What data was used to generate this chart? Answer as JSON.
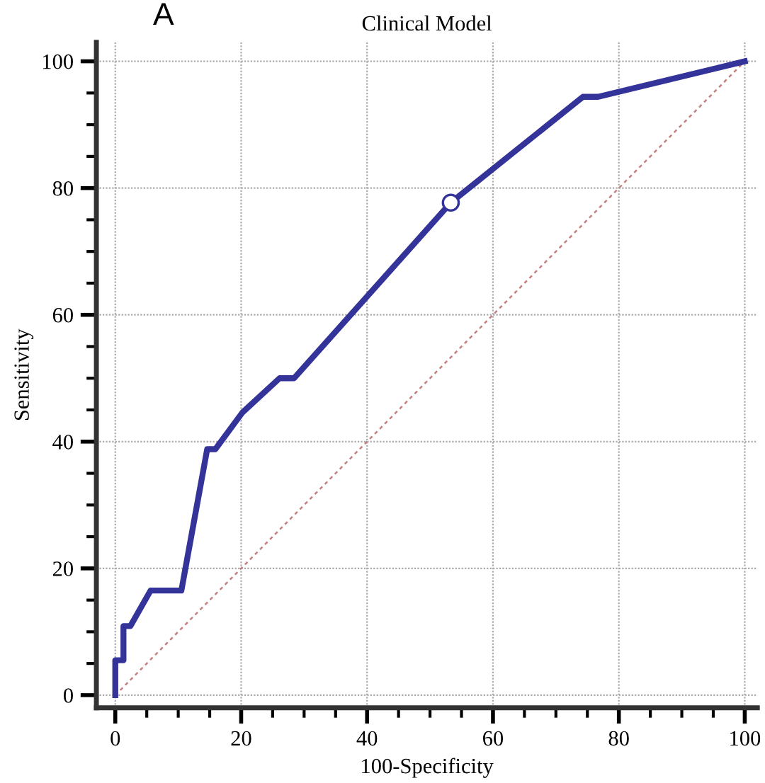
{
  "chart_data": {
    "type": "line",
    "title": "Clinical Model",
    "xlabel": "100-Specificity",
    "ylabel": "Sensitivity",
    "annotations": [
      "A"
    ],
    "series": [
      {
        "color": "#333399",
        "x": [
          0,
          0,
          1.3,
          1.3,
          2.4,
          5.6,
          10.5,
          14.6,
          15.9,
          20.2,
          26.1,
          28.4,
          53.3,
          74.3,
          76.7,
          100
        ],
        "values": [
          0,
          5.5,
          5.5,
          10.9,
          10.9,
          16.5,
          16.5,
          38.8,
          38.8,
          44.6,
          50,
          50,
          77.7,
          94.4,
          94.4,
          100
        ]
      },
      {
        "color": "#c48080",
        "line_style": "dotted",
        "x": [
          0,
          100
        ],
        "values": [
          0,
          100
        ]
      },
      {
        "type": "scatter",
        "color": "#333399",
        "marker": "circle",
        "x": [
          53.3
        ],
        "values": [
          77.7
        ]
      }
    ],
    "xlim": [
      -3,
      102
    ],
    "ylim": [
      -2,
      103
    ],
    "xticks": [
      0,
      20,
      40,
      60,
      80,
      100
    ],
    "yticks": [
      0,
      20,
      40,
      60,
      80,
      100
    ],
    "grid": true
  }
}
